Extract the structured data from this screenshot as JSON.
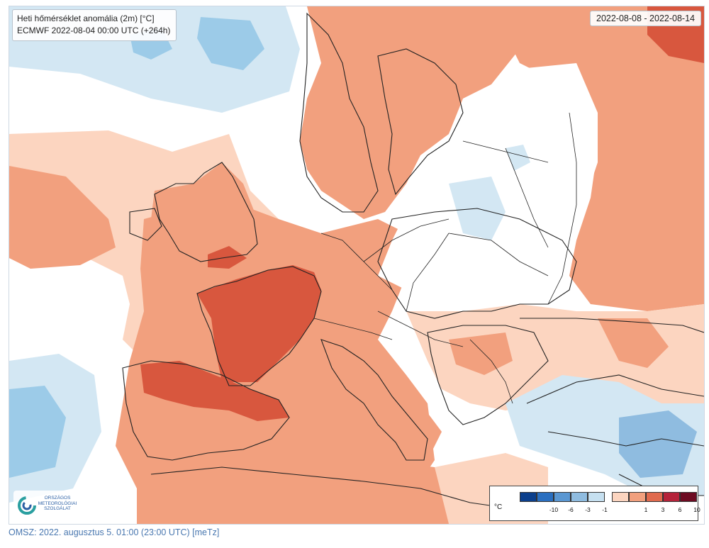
{
  "title": {
    "line1": "Heti hőmérséklet anomália (2m) [°C]",
    "line2": "ECMWF 2022-08-04 00:00 UTC (+264h)"
  },
  "date_range": "2022-08-08 - 2022-08-14",
  "logo": {
    "line1": "ORSZÁGOS",
    "line2": "METEOROLÓGIAI",
    "line3": "SZOLGÁLAT",
    "colors": [
      "#2a9fa0",
      "#2b5fa4"
    ]
  },
  "legend": {
    "unit": "°C",
    "classes": [
      {
        "color": "#0b3f8c",
        "label": ""
      },
      {
        "color": "#2a6fc0",
        "label": "-10"
      },
      {
        "color": "#5a97d2",
        "label": "-6"
      },
      {
        "color": "#8fbce0",
        "label": "-3"
      },
      {
        "color": "#c6e0f0",
        "label": "-1"
      },
      {
        "color": "#fcd5c0",
        "label": ""
      },
      {
        "color": "#f2a07e",
        "label": "1"
      },
      {
        "color": "#e06a4e",
        "label": "3"
      },
      {
        "color": "#b5233a",
        "label": "6"
      },
      {
        "color": "#6e0b22",
        "label": "10"
      }
    ]
  },
  "footer": "OMSZ: 2022. augusztus 5. 01:00 (23:00  UTC)  [meTz]"
}
